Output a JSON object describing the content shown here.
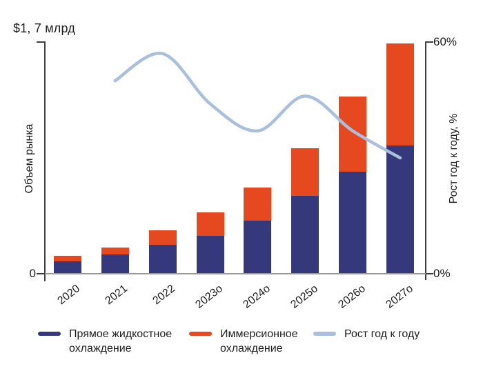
{
  "axes": {
    "left_max_annotation": "$1, 7 млрд",
    "left_title": "Объем рынка",
    "left_zero": "0",
    "right_title": "Рост год к году, %",
    "right_max": "60%",
    "right_zero": "0%"
  },
  "legend": {
    "items": [
      {
        "label": "Прямое жидкостное охлаждение",
        "color": "#35387A"
      },
      {
        "label": "Иммерсионное охлаждение",
        "color": "#E6481F"
      },
      {
        "label": "Рост год к году",
        "color": "#A9BFDB"
      }
    ]
  },
  "colors": {
    "bar_direct_liquid": "#35387A",
    "bar_immersion": "#E6481F",
    "growth_line": "#A9BFDB",
    "axis": "#3f3f3f",
    "baseline": "#989a9c",
    "text": "#1d1d1d"
  },
  "chart_data": {
    "type": "bar",
    "subtype": "stacked_bars_with_line",
    "title": "",
    "categories": [
      "2020",
      "2021",
      "2022",
      "2023о",
      "2024о",
      "2025о",
      "2026о",
      "2027о"
    ],
    "series": [
      {
        "name": "Прямое жидкостное охлаждение",
        "type": "bar",
        "stack": "market",
        "axis": "left",
        "color": "#35387A",
        "values": [
          0.09,
          0.14,
          0.21,
          0.28,
          0.39,
          0.57,
          0.75,
          0.94
        ]
      },
      {
        "name": "Иммерсионное охлаждение",
        "type": "bar",
        "stack": "market",
        "axis": "left",
        "color": "#E6481F",
        "values": [
          0.04,
          0.05,
          0.11,
          0.17,
          0.24,
          0.35,
          0.55,
          0.75
        ]
      },
      {
        "name": "Рост год к году",
        "type": "line",
        "axis": "right",
        "color": "#A9BFDB",
        "values": [
          null,
          50,
          57,
          44,
          37,
          46,
          37,
          30
        ]
      }
    ],
    "y_left": {
      "label": "Объем рынка",
      "unit": "$ млрд",
      "lim": [
        0,
        1.7
      ],
      "max_annotation": "$1, 7 млрд",
      "tick_labels": [
        "0"
      ]
    },
    "y_right": {
      "label": "Рост год к году, %",
      "unit": "%",
      "lim": [
        0,
        60
      ],
      "tick_labels": [
        "0%",
        "60%"
      ]
    },
    "grid": false,
    "legend_position": "bottom"
  }
}
